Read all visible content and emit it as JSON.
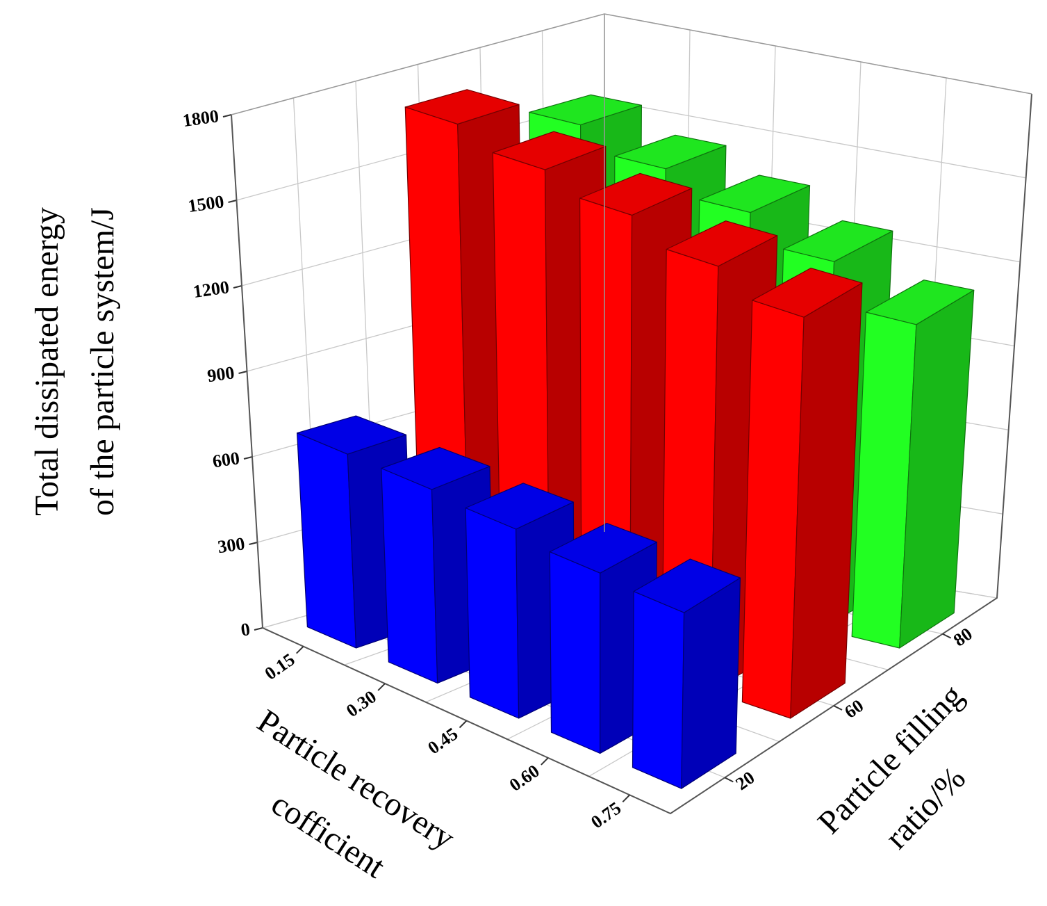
{
  "chart_data": {
    "type": "bar3d",
    "zlabel": [
      "Total dissipated energy",
      "of the particle system/J"
    ],
    "xlabel": [
      "Particle recovery",
      "cofficient"
    ],
    "depthlabel": [
      "Particle filling",
      "ratio/%"
    ],
    "categories": [
      "0.15",
      "0.30",
      "0.45",
      "0.60",
      "0.75"
    ],
    "depth_categories": [
      "20",
      "60",
      "80"
    ],
    "series": [
      {
        "color": "#0000ff",
        "values": [
          680,
          680,
          665,
          635,
          620
        ]
      },
      {
        "color": "#ff0000",
        "values": [
          1700,
          1640,
          1580,
          1500,
          1420
        ]
      },
      {
        "color": "#22ff22",
        "values": [
          1560,
          1480,
          1400,
          1300,
          1150
        ]
      }
    ],
    "zlim": [
      0,
      1800
    ],
    "zticks": [
      0,
      300,
      600,
      900,
      1200,
      1500,
      1800
    ],
    "grid": true
  }
}
